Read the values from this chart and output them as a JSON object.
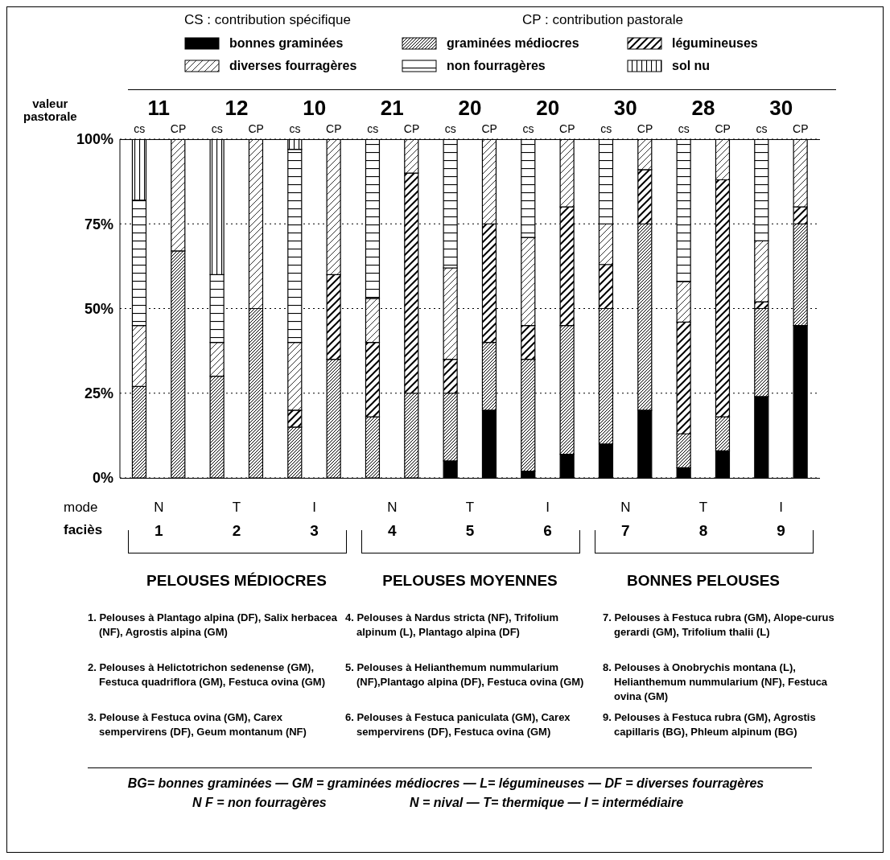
{
  "chart_data": {
    "type": "bar",
    "stacked": true,
    "legend": "top",
    "grid": "y",
    "categories": [
      "cs",
      "CP",
      "cs",
      "CP",
      "cs",
      "CP",
      "cs",
      "CP",
      "cs",
      "CP",
      "cs",
      "CP",
      "cs",
      "CP",
      "cs",
      "CP",
      "cs",
      "CP"
    ],
    "ylim": [
      0,
      100
    ],
    "yticks": [
      {
        "value": 0,
        "label": "0%"
      },
      {
        "value": 25,
        "label": "25%"
      },
      {
        "value": 50,
        "label": "50%"
      },
      {
        "value": 75,
        "label": "75%"
      },
      {
        "value": 100,
        "label": "100%"
      }
    ],
    "series": [
      {
        "name": "bonnes graminées",
        "color": "#000000",
        "values": [
          0,
          0,
          0,
          0,
          0,
          0,
          0,
          0,
          5,
          20,
          2,
          7,
          10,
          20,
          3,
          8,
          24,
          45
        ]
      },
      {
        "name": "graminées médiocres",
        "color": "#000000",
        "values": [
          27,
          67,
          30,
          50,
          15,
          35,
          18,
          25,
          20,
          20,
          33,
          38,
          40,
          55,
          10,
          10,
          26,
          30
        ]
      },
      {
        "name": "légumineuses",
        "color": "#000000",
        "values": [
          0,
          0,
          0,
          0,
          5,
          25,
          22,
          65,
          10,
          35,
          10,
          35,
          13,
          16,
          33,
          70,
          2,
          5
        ]
      },
      {
        "name": "diverses fourragères",
        "color": "#000000",
        "values": [
          18,
          33,
          10,
          50,
          20,
          40,
          13,
          10,
          27,
          25,
          26,
          20,
          12,
          9,
          12,
          12,
          18,
          20
        ]
      },
      {
        "name": "non fourragères",
        "color": "#000000",
        "values": [
          37,
          0,
          20,
          0,
          57,
          0,
          47,
          0,
          38,
          0,
          29,
          0,
          25,
          0,
          42,
          0,
          30,
          0
        ]
      },
      {
        "name": "sol nu",
        "color": "#000000",
        "values": [
          18,
          0,
          40,
          0,
          3,
          0,
          0,
          0,
          0,
          0,
          0,
          0,
          0,
          0,
          0,
          0,
          0,
          0
        ]
      }
    ],
    "annotations": [
      "CS : contribution spécifique",
      "CP : contribution pastorale",
      "valeur pastorale",
      "11",
      "12",
      "10",
      "21",
      "20",
      "20",
      "30",
      "28",
      "30",
      "mode",
      "N",
      "T",
      "I",
      "N",
      "T",
      "I",
      "N",
      "T",
      "I",
      "faciès",
      "1",
      "2",
      "3",
      "4",
      "5",
      "6",
      "7",
      "8",
      "9",
      "PELOUSES MÉDIOCRES",
      "PELOUSES MOYENNES",
      "BONNES PELOUSES",
      "1. Pelouses à Plantago alpina (DF), Salix herbacea (NF), Agrostis alpina (GM)",
      "2. Pelouses à Helictotrichon sedenense (GM), Festuca quadriflora (GM), Festuca ovina (GM)",
      "3. Pelouse à Festuca ovina (GM), Carex sempervirens (DF), Geum montanum (NF)",
      "4. Pelouses à Nardus stricta (NF), Trifolium alpinum (L), Plantago alpina (DF)",
      "5. Pelouses à Helianthemum nummularium (NF),Plantago alpina (DF), Festuca ovina (GM)",
      "6. Pelouses à Festuca paniculata (GM), Carex sempervirens (DF), Festuca ovina (GM)",
      "7. Pelouses à Festuca rubra (GM), Alope-curus gerardi (GM), Trifolium thalii (L)",
      "8. Pelouses à Onobrychis montana (L), Helianthemum nummularium (NF), Festuca ovina (GM)",
      "9. Pelouses à Festuca rubra (GM), Agrostis capillaris (BG), Phleum alpinum (BG)",
      "BG= bonnes graminées — GM = graminées médiocres — L= légumineuses — DF = diverses fourragères",
      "N F = non fourragères",
      "N = nival  —  T= thermique  —  I = intermédiaire"
    ]
  }
}
